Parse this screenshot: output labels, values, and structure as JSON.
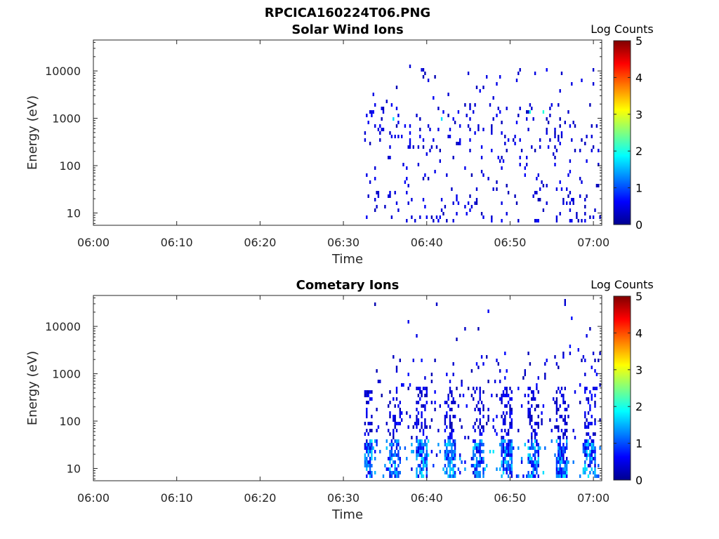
{
  "figure_title": "RPCICA160224T06.PNG",
  "chart_data": [
    {
      "type": "heatmap",
      "title": "Solar Wind Ions",
      "xlabel": "Time",
      "ylabel": "Energy (eV)",
      "xlim": [
        "06:00",
        "07:01"
      ],
      "ylim": [
        5.5,
        45000
      ],
      "yscale": "log",
      "x_ticks": [
        "06:00",
        "06:10",
        "06:20",
        "06:30",
        "06:40",
        "06:50",
        "07:00"
      ],
      "y_ticks": [
        "10",
        "100",
        "1000",
        "10000"
      ],
      "colorbar": {
        "label": "Log Counts",
        "range": [
          0,
          5
        ],
        "ticks": [
          "0",
          "1",
          "2",
          "3",
          "4",
          "5"
        ],
        "colormap": "jet"
      },
      "data_start": "06:32.5",
      "sample_cells": [
        {
          "t_min": 33.2,
          "e_ev": 8,
          "log_counts": 0.6
        },
        {
          "t_min": 33.6,
          "e_ev": 9,
          "log_counts": 0.5
        },
        {
          "t_min": 33.0,
          "e_ev": 600,
          "log_counts": 0.4
        },
        {
          "t_min": 34.8,
          "e_ev": 1500,
          "log_counts": 0.4
        },
        {
          "t_min": 38.8,
          "e_ev": 1400,
          "log_counts": 1.8
        },
        {
          "t_min": 45.4,
          "e_ev": 1400,
          "log_counts": 1.9
        },
        {
          "t_min": 48.6,
          "e_ev": 1300,
          "log_counts": 1.6
        },
        {
          "t_min": 53.4,
          "e_ev": 600,
          "log_counts": 0.4
        },
        {
          "t_min": 56.6,
          "e_ev": 10,
          "log_counts": 0.5
        },
        {
          "t_min": 32.6,
          "e_ev": 130,
          "log_counts": 0.3
        }
      ]
    },
    {
      "type": "heatmap",
      "title": "Cometary Ions",
      "xlabel": "Time",
      "ylabel": "Energy (eV)",
      "xlim": [
        "06:00",
        "07:01"
      ],
      "ylim": [
        5.5,
        45000
      ],
      "yscale": "log",
      "x_ticks": [
        "06:00",
        "06:10",
        "06:20",
        "06:30",
        "06:40",
        "06:50",
        "07:00"
      ],
      "y_ticks": [
        "10",
        "100",
        "1000",
        "10000"
      ],
      "colorbar": {
        "label": "Log Counts",
        "range": [
          0,
          5
        ],
        "ticks": [
          "0",
          "1",
          "2",
          "3",
          "4",
          "5"
        ],
        "colormap": "jet"
      },
      "data_start": "06:32.5",
      "sample_cells": [
        {
          "t_min": 34.0,
          "e_ev": 15,
          "log_counts": 1.6
        },
        {
          "t_min": 37.5,
          "e_ev": 18,
          "log_counts": 1.2
        },
        {
          "t_min": 40.5,
          "e_ev": 15,
          "log_counts": 1.7
        },
        {
          "t_min": 43.5,
          "e_ev": 20,
          "log_counts": 1.0
        },
        {
          "t_min": 46.0,
          "e_ev": 18,
          "log_counts": 1.3
        },
        {
          "t_min": 49.5,
          "e_ev": 20,
          "log_counts": 1.1
        },
        {
          "t_min": 53.5,
          "e_ev": 18,
          "log_counts": 1.2
        },
        {
          "t_min": 57.0,
          "e_ev": 15,
          "log_counts": 1.4
        },
        {
          "t_min": 59.8,
          "e_ev": 18,
          "log_counts": 1.0
        },
        {
          "t_min": 35.5,
          "e_ev": 300,
          "log_counts": 0.4
        }
      ]
    }
  ]
}
